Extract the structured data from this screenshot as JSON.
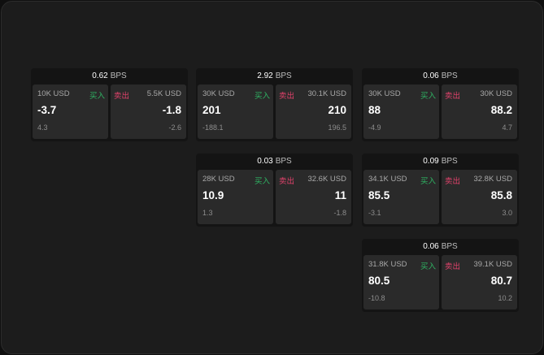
{
  "tiles": [
    {
      "spread": "0.62",
      "unit": "BPS",
      "buy": {
        "qty": "10K USD",
        "label": "买入",
        "price": "-3.7",
        "change": "4.3"
      },
      "sell": {
        "qty": "5.5K USD",
        "label": "卖出",
        "price": "-1.8",
        "change": "-2.6"
      }
    },
    {
      "spread": "2.92",
      "unit": "BPS",
      "buy": {
        "qty": "30K USD",
        "label": "买入",
        "price": "201",
        "change": "-188.1"
      },
      "sell": {
        "qty": "30.1K USD",
        "label": "卖出",
        "price": "210",
        "change": "196.5"
      }
    },
    {
      "spread": "0.06",
      "unit": "BPS",
      "buy": {
        "qty": "30K USD",
        "label": "买入",
        "price": "88",
        "change": "-4.9"
      },
      "sell": {
        "qty": "30K USD",
        "label": "卖出",
        "price": "88.2",
        "change": "4.7"
      }
    },
    {
      "spread": "0.03",
      "unit": "BPS",
      "buy": {
        "qty": "28K USD",
        "label": "买入",
        "price": "10.9",
        "change": "1.3"
      },
      "sell": {
        "qty": "32.6K USD",
        "label": "卖出",
        "price": "11",
        "change": "-1.8"
      }
    },
    {
      "spread": "0.09",
      "unit": "BPS",
      "buy": {
        "qty": "34.1K USD",
        "label": "买入",
        "price": "85.5",
        "change": "-3.1"
      },
      "sell": {
        "qty": "32.8K USD",
        "label": "卖出",
        "price": "85.8",
        "change": "3.0"
      }
    },
    {
      "spread": "0.06",
      "unit": "BPS",
      "buy": {
        "qty": "31.8K USD",
        "label": "买入",
        "price": "80.5",
        "change": "-10.8"
      },
      "sell": {
        "qty": "39.1K USD",
        "label": "卖出",
        "price": "80.7",
        "change": "10.2"
      }
    }
  ],
  "colors": {
    "buy": "#2fb463",
    "sell": "#e0426b",
    "background": "#1c1c1c",
    "panel": "#2a2a2a"
  }
}
